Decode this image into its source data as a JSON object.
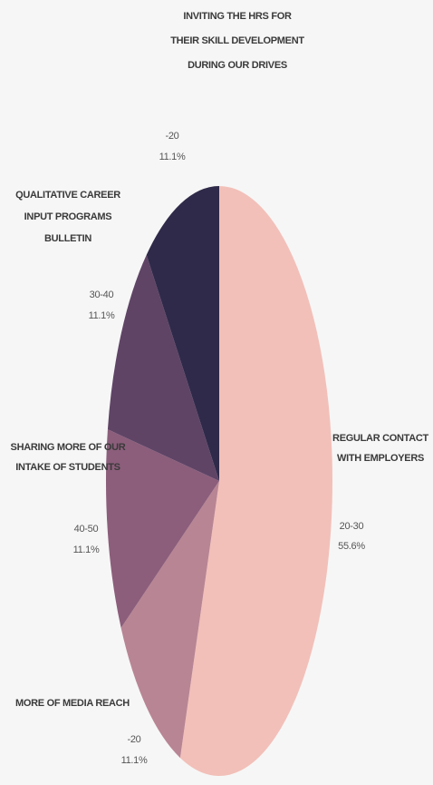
{
  "chart_data": {
    "type": "pie",
    "categories": [
      [
        "REGULAR CONTACT",
        "WITH EMPLOYERS"
      ],
      [
        "MORE OF MEDIA REACH"
      ],
      [
        "SHARING MORE OF OUR",
        "INTAKE OF STUDENTS"
      ],
      [
        "QUALITATIVE CAREER",
        "INPUT PROGRAMS",
        "BULLETIN"
      ],
      [
        "INVITING THE HRS FOR",
        "THEIR SKILL DEVELOPMENT",
        "DURING OUR DRIVES"
      ]
    ],
    "ranges": [
      "20-30",
      "-20",
      "40-50",
      "30-40",
      "-20"
    ],
    "values": [
      55.6,
      11.1,
      11.1,
      11.1,
      11.1
    ],
    "value_labels": [
      "55.6%",
      "11.1%",
      "11.1%",
      "11.1%",
      "11.1%"
    ],
    "colors": [
      "#f2c0b9",
      "#b88594",
      "#8c5e7b",
      "#5f4466",
      "#2f2a49"
    ]
  }
}
